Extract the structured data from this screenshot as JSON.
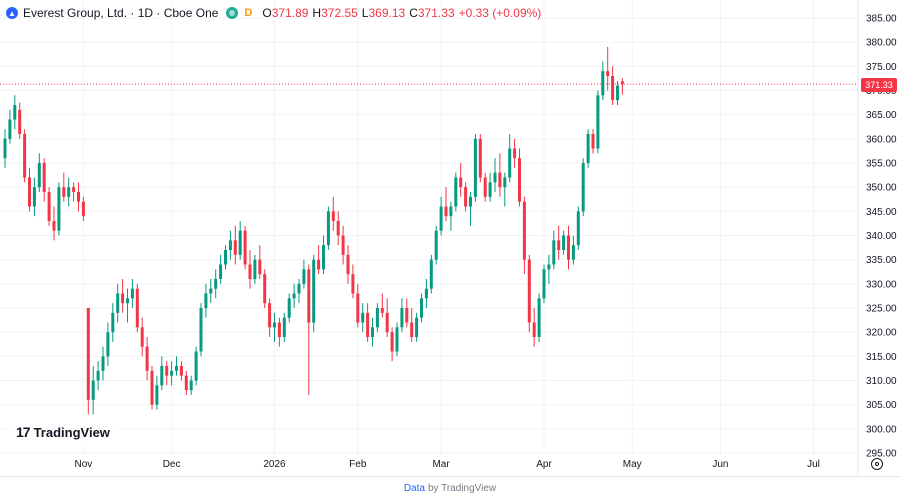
{
  "legend": {
    "symbol_glyph": "▲",
    "title": "Everest Group, Ltd. · 1D · Cboe One",
    "delay_badge": "D",
    "o_key": "O",
    "o_val": "371.89",
    "h_key": "H",
    "h_val": "372.55",
    "l_key": "L",
    "l_val": "369.13",
    "c_key": "C",
    "c_val": "371.33",
    "change": "+0.33 (+0.09%)"
  },
  "last_price_label": "371.33",
  "logo_text": "TradingView",
  "footer": {
    "data_label": "Data",
    "by_label": "by TradingView"
  },
  "colors": {
    "up": "#089981",
    "down": "#f23645",
    "grid": "#f0f3fa",
    "axis_text": "#131722"
  },
  "chart_data": {
    "type": "candlestick",
    "ylim": [
      295,
      385
    ],
    "y_ticks": [
      295,
      300,
      305,
      310,
      315,
      320,
      325,
      330,
      335,
      340,
      345,
      350,
      355,
      360,
      365,
      370,
      375,
      380,
      385
    ],
    "y_tick_labels": [
      "295.00",
      "300.00",
      "305.00",
      "310.00",
      "315.00",
      "320.00",
      "325.00",
      "330.00",
      "335.00",
      "340.00",
      "345.00",
      "350.00",
      "355.00",
      "360.00",
      "365.00",
      "370.00",
      "375.00",
      "380.00",
      "385.00"
    ],
    "x_ticks": [
      {
        "index": 16,
        "label": "Nov"
      },
      {
        "index": 34,
        "label": "Dec"
      },
      {
        "index": 55,
        "label": "2026"
      },
      {
        "index": 72,
        "label": "Feb"
      },
      {
        "index": 89,
        "label": "Mar"
      },
      {
        "index": 110,
        "label": "Apr"
      },
      {
        "index": 128,
        "label": "May"
      },
      {
        "index": 146,
        "label": "Jun"
      },
      {
        "index": 165,
        "label": "Jul"
      }
    ],
    "last_price": 371.33,
    "candles": [
      [
        356.0,
        362.0,
        354.0,
        360.0
      ],
      [
        360.0,
        366.0,
        359.0,
        364.0
      ],
      [
        364.0,
        369.0,
        362.0,
        367.0
      ],
      [
        366.0,
        367.5,
        360.0,
        361.0
      ],
      [
        361.0,
        362.0,
        351.0,
        352.0
      ],
      [
        352.0,
        354.0,
        345.0,
        346.0
      ],
      [
        346.0,
        352.0,
        344.0,
        350.0
      ],
      [
        350.0,
        357.0,
        349.0,
        355.0
      ],
      [
        355.0,
        356.0,
        347.0,
        349.0
      ],
      [
        349.0,
        350.0,
        342.0,
        343.0
      ],
      [
        343.0,
        346.0,
        339.0,
        341.0
      ],
      [
        341.0,
        351.0,
        340.0,
        350.0
      ],
      [
        350.0,
        353.0,
        347.0,
        348.0
      ],
      [
        348.0,
        352.0,
        346.0,
        350.0
      ],
      [
        350.0,
        351.0,
        347.0,
        349.0
      ],
      [
        349.0,
        351.0,
        345.0,
        347.0
      ],
      [
        347.0,
        348.0,
        343.0,
        344.0
      ],
      [
        325.0,
        325.0,
        303.0,
        306.0
      ],
      [
        306.0,
        313.0,
        303.0,
        310.0
      ],
      [
        310.0,
        314.0,
        308.0,
        312.0
      ],
      [
        312.0,
        317.0,
        310.0,
        315.0
      ],
      [
        315.0,
        322.0,
        313.0,
        320.0
      ],
      [
        320.0,
        326.0,
        318.0,
        324.0
      ],
      [
        324.0,
        330.0,
        322.0,
        328.0
      ],
      [
        328.0,
        331.0,
        324.0,
        326.0
      ],
      [
        326.0,
        329.0,
        322.0,
        327.0
      ],
      [
        327.0,
        331.0,
        325.0,
        329.0
      ],
      [
        329.0,
        330.0,
        320.0,
        321.0
      ],
      [
        321.0,
        323.0,
        315.0,
        317.0
      ],
      [
        317.0,
        319.0,
        310.0,
        312.0
      ],
      [
        312.0,
        313.0,
        304.0,
        305.0
      ],
      [
        305.0,
        311.0,
        304.0,
        309.0
      ],
      [
        309.0,
        315.0,
        308.0,
        313.0
      ],
      [
        313.0,
        314.0,
        309.0,
        311.0
      ],
      [
        311.0,
        314.0,
        309.0,
        312.0
      ],
      [
        312.0,
        315.0,
        311.0,
        313.0
      ],
      [
        313.0,
        314.0,
        310.0,
        311.0
      ],
      [
        311.0,
        312.0,
        307.0,
        308.0
      ],
      [
        308.0,
        311.0,
        307.0,
        310.0
      ],
      [
        310.0,
        317.0,
        309.0,
        316.0
      ],
      [
        316.0,
        326.0,
        315.0,
        325.0
      ],
      [
        325.0,
        330.0,
        323.0,
        328.0
      ],
      [
        328.0,
        331.0,
        326.0,
        329.0
      ],
      [
        329.0,
        333.0,
        327.0,
        331.0
      ],
      [
        331.0,
        336.0,
        330.0,
        334.0
      ],
      [
        334.0,
        338.0,
        333.0,
        337.0
      ],
      [
        337.0,
        341.0,
        335.0,
        339.0
      ],
      [
        339.0,
        342.0,
        334.0,
        336.0
      ],
      [
        336.0,
        343.0,
        335.0,
        341.0
      ],
      [
        341.0,
        342.0,
        333.0,
        334.0
      ],
      [
        334.0,
        337.0,
        329.0,
        331.0
      ],
      [
        331.0,
        336.0,
        330.0,
        335.0
      ],
      [
        335.0,
        338.0,
        331.0,
        332.0
      ],
      [
        332.0,
        333.0,
        325.0,
        326.0
      ],
      [
        326.0,
        327.0,
        319.0,
        321.0
      ],
      [
        321.0,
        324.0,
        318.0,
        322.0
      ],
      [
        322.0,
        323.0,
        317.0,
        319.0
      ],
      [
        319.0,
        324.0,
        318.0,
        323.0
      ],
      [
        323.0,
        328.0,
        322.0,
        327.0
      ],
      [
        327.0,
        330.0,
        325.0,
        328.0
      ],
      [
        328.0,
        331.0,
        326.0,
        330.0
      ],
      [
        330.0,
        335.0,
        329.0,
        333.0
      ],
      [
        333.0,
        334.0,
        307.0,
        322.0
      ],
      [
        322.0,
        336.0,
        320.0,
        335.0
      ],
      [
        335.0,
        338.0,
        332.0,
        333.0
      ],
      [
        333.0,
        340.0,
        332.0,
        338.0
      ],
      [
        338.0,
        346.0,
        337.0,
        345.0
      ],
      [
        345.0,
        348.0,
        341.0,
        343.0
      ],
      [
        343.0,
        345.0,
        338.0,
        340.0
      ],
      [
        340.0,
        342.0,
        334.0,
        336.0
      ],
      [
        336.0,
        338.0,
        330.0,
        332.0
      ],
      [
        332.0,
        334.0,
        327.0,
        328.0
      ],
      [
        328.0,
        330.0,
        321.0,
        322.0
      ],
      [
        322.0,
        326.0,
        320.0,
        324.0
      ],
      [
        324.0,
        326.0,
        318.0,
        319.0
      ],
      [
        319.0,
        323.0,
        317.0,
        321.0
      ],
      [
        321.0,
        326.0,
        320.0,
        325.0
      ],
      [
        325.0,
        328.0,
        323.0,
        324.0
      ],
      [
        324.0,
        327.0,
        319.0,
        320.0
      ],
      [
        320.0,
        321.0,
        314.0,
        316.0
      ],
      [
        316.0,
        322.0,
        315.0,
        321.0
      ],
      [
        321.0,
        327.0,
        320.0,
        325.0
      ],
      [
        325.0,
        327.0,
        321.0,
        322.0
      ],
      [
        322.0,
        325.0,
        318.0,
        319.0
      ],
      [
        319.0,
        324.0,
        318.0,
        323.0
      ],
      [
        323.0,
        328.0,
        322.0,
        327.0
      ],
      [
        327.0,
        331.0,
        325.0,
        329.0
      ],
      [
        329.0,
        336.0,
        328.0,
        335.0
      ],
      [
        335.0,
        342.0,
        334.0,
        341.0
      ],
      [
        341.0,
        348.0,
        340.0,
        346.0
      ],
      [
        346.0,
        350.0,
        343.0,
        344.0
      ],
      [
        344.0,
        347.0,
        341.0,
        346.0
      ],
      [
        346.0,
        353.0,
        345.0,
        352.0
      ],
      [
        352.0,
        355.0,
        348.0,
        350.0
      ],
      [
        350.0,
        351.0,
        345.0,
        346.0
      ],
      [
        346.0,
        349.0,
        342.0,
        348.0
      ],
      [
        348.0,
        361.0,
        347.0,
        360.0
      ],
      [
        360.0,
        361.0,
        351.0,
        352.0
      ],
      [
        352.0,
        353.0,
        347.0,
        348.0
      ],
      [
        348.0,
        353.0,
        347.0,
        351.0
      ],
      [
        351.0,
        356.0,
        349.0,
        353.0
      ],
      [
        353.0,
        357.0,
        348.0,
        350.0
      ],
      [
        350.0,
        353.0,
        346.0,
        352.0
      ],
      [
        352.0,
        361.0,
        351.0,
        358.0
      ],
      [
        358.0,
        360.0,
        354.0,
        356.0
      ],
      [
        356.0,
        358.0,
        346.0,
        347.0
      ],
      [
        347.0,
        348.0,
        332.0,
        335.0
      ],
      [
        335.0,
        336.0,
        320.0,
        322.0
      ],
      [
        322.0,
        325.0,
        317.0,
        319.0
      ],
      [
        319.0,
        328.0,
        318.0,
        327.0
      ],
      [
        327.0,
        334.0,
        326.0,
        333.0
      ],
      [
        333.0,
        336.0,
        330.0,
        334.0
      ],
      [
        334.0,
        341.0,
        333.0,
        339.0
      ],
      [
        339.0,
        342.0,
        335.0,
        337.0
      ],
      [
        337.0,
        341.0,
        336.0,
        340.0
      ],
      [
        340.0,
        342.0,
        333.0,
        335.0
      ],
      [
        335.0,
        340.0,
        334.0,
        338.0
      ],
      [
        338.0,
        346.0,
        337.0,
        345.0
      ],
      [
        345.0,
        356.0,
        344.0,
        355.0
      ],
      [
        355.0,
        362.0,
        354.0,
        361.0
      ],
      [
        361.0,
        362.0,
        357.0,
        358.0
      ],
      [
        358.0,
        370.0,
        357.0,
        369.0
      ],
      [
        369.0,
        376.0,
        368.0,
        374.0
      ],
      [
        374.0,
        379.0,
        370.0,
        373.0
      ],
      [
        373.0,
        375.0,
        367.0,
        368.0
      ],
      [
        368.0,
        372.0,
        367.0,
        371.0
      ],
      [
        371.89,
        372.55,
        369.13,
        371.33
      ]
    ]
  }
}
